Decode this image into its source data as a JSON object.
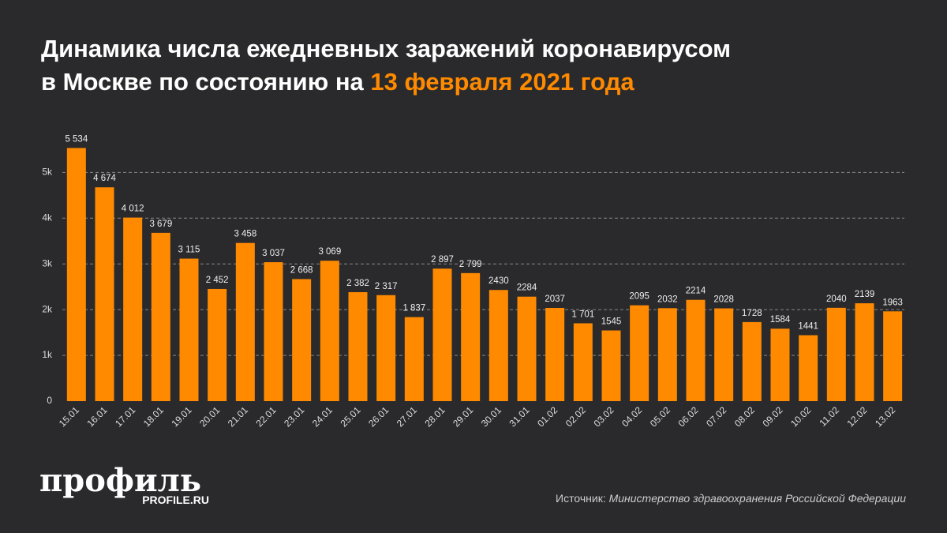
{
  "chart_data": {
    "type": "bar",
    "title": {
      "line1": "Динамика числа ежедневных заражений коронавирусом",
      "line2": "в Москве по состоянию на",
      "date": "13 февраля 2021 года"
    },
    "categories": [
      "15.01",
      "16.01",
      "17.01",
      "18.01",
      "19.01",
      "20.01",
      "21.01",
      "22.01",
      "23.01",
      "24.01",
      "25.01",
      "26.01",
      "27.01",
      "28.01",
      "29.01",
      "30.01",
      "31.01",
      "01.02",
      "02.02",
      "03.02",
      "04.02",
      "05.02",
      "06.02",
      "07.02",
      "08.02",
      "09.02",
      "10.02",
      "11.02",
      "12.02",
      "13.02"
    ],
    "values": [
      5534,
      4674,
      4012,
      3679,
      3115,
      2452,
      3458,
      3037,
      2668,
      3069,
      2382,
      2317,
      1837,
      2897,
      2799,
      2430,
      2284,
      2037,
      1701,
      1545,
      2095,
      2032,
      2214,
      2028,
      1728,
      1584,
      1441,
      2040,
      2139,
      1963
    ],
    "value_labels": [
      "5 534",
      "4 674",
      "4 012",
      "3 679",
      "3 115",
      "2 452",
      "3 458",
      "3 037",
      "2 668",
      "3 069",
      "2 382",
      "2 317",
      "1 837",
      "2 897",
      "2 799",
      "2430",
      "2284",
      "2037",
      "1 701",
      "1545",
      "2095",
      "2032",
      "2214",
      "2028",
      "1728",
      "1584",
      "1441",
      "2040",
      "2139",
      "1963"
    ],
    "color": "#ff8a00",
    "ylim": [
      0,
      5800
    ],
    "yticks": [
      0,
      {
        "value": 1000,
        "label": "1k"
      },
      {
        "value": 2000,
        "label": "2k"
      },
      {
        "value": 3000,
        "label": "3k"
      },
      {
        "value": 4000,
        "label": "4k"
      },
      {
        "value": 5000,
        "label": "5k"
      }
    ],
    "grid": true
  },
  "logo": {
    "name": "профиль",
    "site": "PROFILE.RU"
  },
  "source": {
    "label": "Источник:",
    "text": "Министерство здравоохранения Российской Федерации"
  }
}
